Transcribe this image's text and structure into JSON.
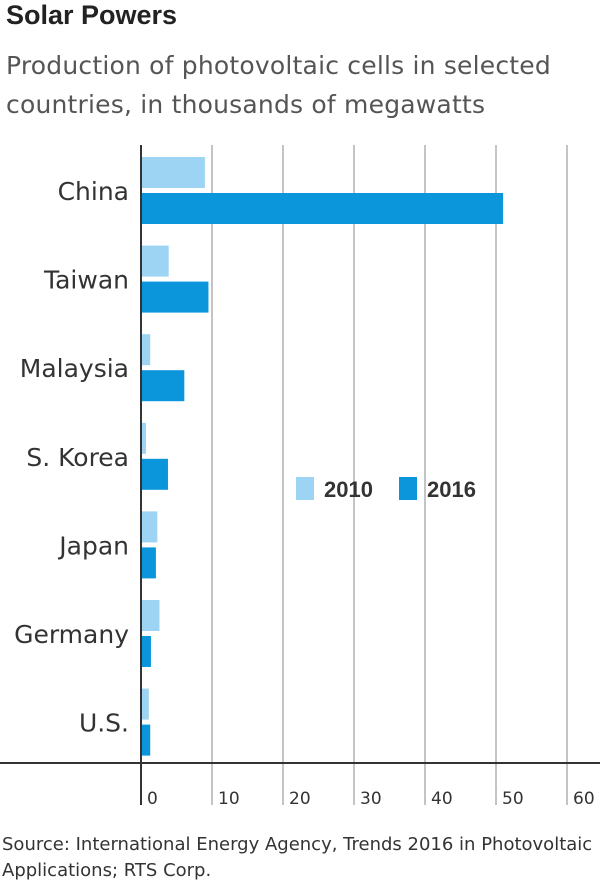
{
  "header": {
    "title": "Solar Powers",
    "subtitle": "Production of photovoltaic cells in selected countries, in thousands of megawatts"
  },
  "footer": {
    "source": "Source: International Energy Agency, Trends 2016 in Photovoltaic Applications; RTS Corp."
  },
  "colors": {
    "series_2010": "#9dd3f3",
    "series_2016": "#0b96dc",
    "gridline": "#c4c4c4",
    "axis": "#333333"
  },
  "chart_data": {
    "type": "bar",
    "orientation": "horizontal",
    "categories": [
      "China",
      "Taiwan",
      "Malaysia",
      "S. Korea",
      "Japan",
      "Germany",
      "U.S."
    ],
    "series": [
      {
        "name": "2010",
        "values": [
          9,
          3.9,
          1.3,
          0.7,
          2.3,
          2.6,
          1.1
        ]
      },
      {
        "name": "2016",
        "values": [
          51,
          9.5,
          6.1,
          3.8,
          2.1,
          1.4,
          1.3
        ]
      }
    ],
    "xlim": [
      0,
      60
    ],
    "xticks": [
      0,
      10,
      20,
      30,
      40,
      50,
      60
    ],
    "grid": true,
    "legend_position": "right"
  }
}
